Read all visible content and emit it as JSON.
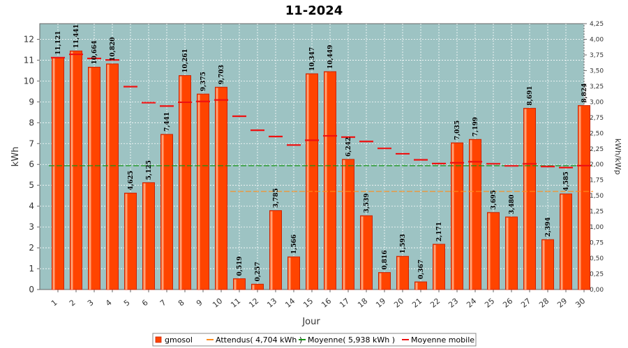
{
  "chart_data": {
    "type": "bar",
    "title": "11-2024",
    "xlabel": "Jour",
    "ylabel": "kWh",
    "ylabel_right": "kWh/kWp",
    "ylim": [
      0,
      12.75
    ],
    "ylim_right": [
      0,
      4.25
    ],
    "yticks": [
      "0",
      "1",
      "2",
      "3",
      "4",
      "5",
      "6",
      "7",
      "8",
      "9",
      "10",
      "11",
      "12"
    ],
    "yticks_right": [
      "0,00",
      "0,25",
      "0,50",
      "0,75",
      "1,00",
      "1,25",
      "1,50",
      "1,75",
      "2,00",
      "2,25",
      "2,50",
      "2,75",
      "3,00",
      "3,25",
      "3,50",
      "3,75",
      "4,00",
      "4,25"
    ],
    "categories": [
      "1",
      "2",
      "3",
      "4",
      "5",
      "6",
      "7",
      "8",
      "9",
      "10",
      "11",
      "12",
      "13",
      "14",
      "15",
      "16",
      "17",
      "18",
      "19",
      "20",
      "21",
      "22",
      "23",
      "24",
      "25",
      "26",
      "27",
      "28",
      "29",
      "30"
    ],
    "grid": true,
    "legend_position": "bottom",
    "colors": {
      "plot_background": "#9dc3c3",
      "bar": "#ff4400",
      "bar_edge": "#cc2200",
      "expected_line": "#ff8c1a",
      "mean_line": "#149414",
      "moving_avg": "#ee1111"
    },
    "series": [
      {
        "name": "gmosol",
        "values": [
          11.121,
          11.441,
          10.664,
          10.82,
          4.625,
          5.125,
          7.441,
          10.261,
          9.375,
          9.703,
          0.519,
          0.257,
          3.785,
          1.566,
          10.347,
          10.449,
          6.242,
          3.539,
          0.816,
          1.593,
          0.367,
          2.171,
          7.035,
          7.199,
          3.695,
          3.48,
          8.691,
          2.394,
          4.585,
          8.824
        ],
        "labels": [
          "11,121",
          "11,441",
          "10,664",
          "10,820",
          "4,625",
          "5,125",
          "7,441",
          "10,261",
          "9,375",
          "9,703",
          "0,519",
          "0,257",
          "3,785",
          "1,566",
          "10,347",
          "10,449",
          "6,242",
          "3,539",
          "0,816",
          "1,593",
          "0,367",
          "2,171",
          "7,035",
          "7,199",
          "3,695",
          "3,480",
          "8,691",
          "2,394",
          "4,585",
          "8,824"
        ]
      },
      {
        "name": "Attendus( 4,704 kWh )",
        "value": 4.704,
        "x_range": [
          "11",
          "30"
        ]
      },
      {
        "name": "Moyenne( 5,938 kWh )",
        "value": 5.938
      },
      {
        "name": "Moyenne mobile",
        "values": [
          11.12,
          11.28,
          11.08,
          11.01,
          9.73,
          8.96,
          8.8,
          8.98,
          9.02,
          9.09,
          8.31,
          7.64,
          7.34,
          6.93,
          7.16,
          7.37,
          7.31,
          7.1,
          6.77,
          6.51,
          6.22,
          6.04,
          6.08,
          6.13,
          6.03,
          5.93,
          6.03,
          5.9,
          5.85,
          5.94
        ]
      }
    ]
  }
}
